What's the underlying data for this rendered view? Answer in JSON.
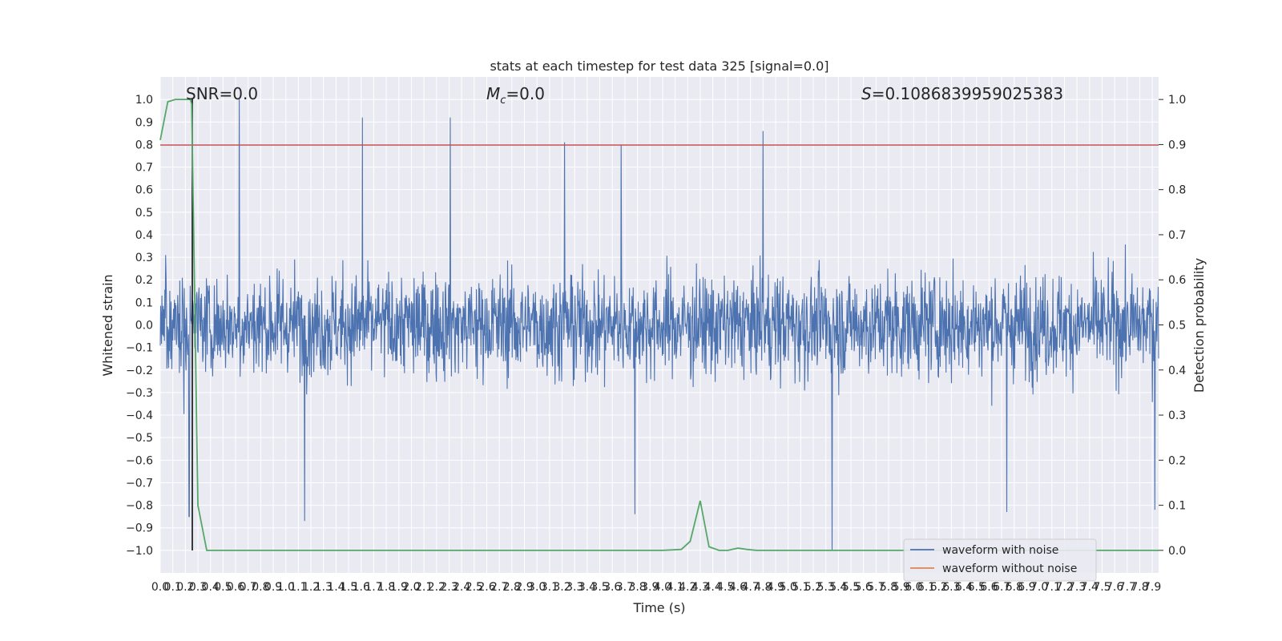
{
  "chart_data": {
    "type": "line",
    "title": "stats at each timestep for test data 325 [signal=0.0]",
    "xlabel": "Time (s)",
    "ylabel": "Whitened strain",
    "ylabel_right": "Detection probability",
    "xlim": [
      0.0,
      7.95
    ],
    "ylim": [
      -1.1,
      1.1
    ],
    "ylim_right": [
      -0.05,
      1.05
    ],
    "grid": true,
    "x_ticks": [
      "0.0",
      "0.1",
      "0.2",
      "0.3",
      "0.4",
      "0.5",
      "0.6",
      "0.7",
      "0.8",
      "0.9",
      "1.0",
      "1.1",
      "1.2",
      "1.3",
      "1.4",
      "1.5",
      "1.6",
      "1.7",
      "1.8",
      "1.9",
      "2.0",
      "2.1",
      "2.2",
      "2.3",
      "2.4",
      "2.5",
      "2.6",
      "2.7",
      "2.8",
      "2.9",
      "3.0",
      "3.1",
      "3.2",
      "3.3",
      "3.4",
      "3.5",
      "3.6",
      "3.7",
      "3.8",
      "3.9",
      "4.0",
      "4.1",
      "4.2",
      "4.3",
      "4.4",
      "4.5",
      "4.6",
      "4.7",
      "4.8",
      "4.9",
      "5.0",
      "5.1",
      "5.2",
      "5.3",
      "5.4",
      "5.5",
      "5.6",
      "5.7",
      "5.8",
      "5.9",
      "6.0",
      "6.1",
      "6.2",
      "6.3",
      "6.4",
      "6.5",
      "6.6",
      "6.7",
      "6.8",
      "6.9",
      "7.0",
      "7.1",
      "7.2",
      "7.3",
      "7.4",
      "7.5",
      "7.6",
      "7.7",
      "7.8",
      "7.9"
    ],
    "y_ticks": [
      "1.0",
      "0.9",
      "0.8",
      "0.7",
      "0.6",
      "0.5",
      "0.4",
      "0.3",
      "0.2",
      "0.1",
      "0.0",
      "−0.1",
      "−0.2",
      "−0.3",
      "−0.4",
      "−0.5",
      "−0.6",
      "−0.7",
      "−0.8",
      "−0.9",
      "−1.0"
    ],
    "y_ticks_right": [
      "1.0",
      "0.9",
      "0.8",
      "0.7",
      "0.6",
      "0.5",
      "0.4",
      "0.3",
      "0.2",
      "0.1",
      "0.0"
    ],
    "annotations": {
      "snr": "SNR=0.0",
      "mc_symbol": "M",
      "mc_sub": "c",
      "mc_value": "=0.0",
      "s_symbol": "S",
      "s_value": "=0.1086839959025383"
    },
    "legend": {
      "placement": "lower-right",
      "entries": [
        "waveform with noise",
        "waveform without noise"
      ]
    },
    "series": [
      {
        "name": "waveform with noise",
        "color": "#4c72b0",
        "envelope": "noise, roughly ±0.45 with spikes",
        "spikes": [
          {
            "x": 0.63,
            "y": 1.0
          },
          {
            "x": 1.61,
            "y": 0.92
          },
          {
            "x": 2.31,
            "y": 0.92
          },
          {
            "x": 4.8,
            "y": 0.86
          },
          {
            "x": 3.22,
            "y": 0.81
          },
          {
            "x": 3.67,
            "y": 0.8
          },
          {
            "x": 0.23,
            "y": -0.85
          },
          {
            "x": 1.15,
            "y": -0.87
          },
          {
            "x": 5.35,
            "y": -1.0
          },
          {
            "x": 3.78,
            "y": -0.84
          },
          {
            "x": 6.74,
            "y": -0.83
          },
          {
            "x": 7.92,
            "y": -0.82
          }
        ]
      },
      {
        "name": "waveform without noise",
        "color": "#dd8452",
        "values": []
      },
      {
        "name": "detection probability",
        "color": "#55a868",
        "axis": "right",
        "x": [
          0.0,
          0.06,
          0.12,
          0.18,
          0.24,
          0.25,
          0.3,
          0.37,
          0.5,
          1.0,
          2.0,
          3.0,
          4.0,
          4.15,
          4.22,
          4.3,
          4.37,
          4.45,
          4.52,
          4.6,
          4.67,
          4.75,
          5.0,
          6.0,
          7.0,
          7.95
        ],
        "y": [
          0.91,
          0.995,
          1.0,
          1.0,
          1.0,
          0.99,
          0.1,
          0.0,
          0.0,
          0.0,
          0.0,
          0.0,
          0.0,
          0.002,
          0.02,
          0.11,
          0.008,
          0.0,
          0.0,
          0.005,
          0.002,
          0.0,
          0.0,
          0.0,
          0.0,
          0.0
        ]
      }
    ],
    "reference_lines": [
      {
        "type": "horizontal",
        "y_right": 0.9,
        "color": "#c44e52"
      },
      {
        "type": "vertical",
        "x": 0.25,
        "color": "#000000"
      }
    ]
  }
}
